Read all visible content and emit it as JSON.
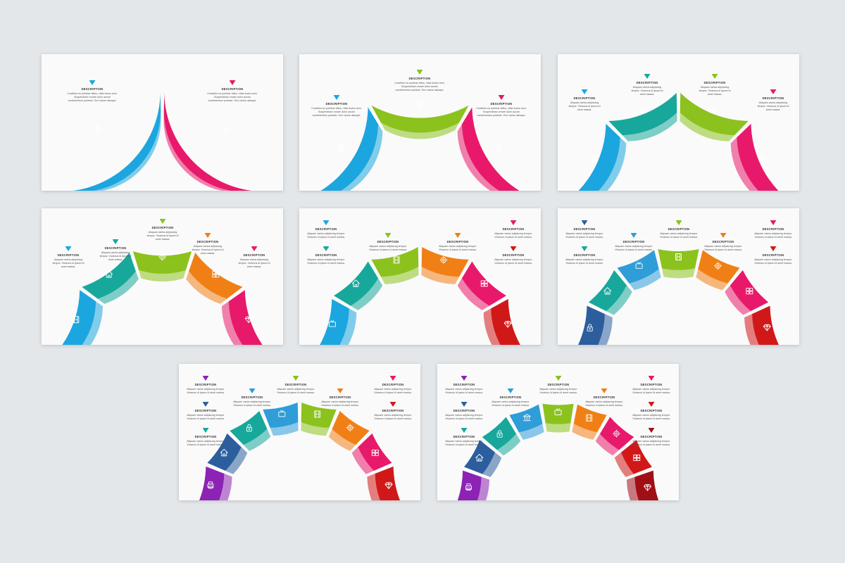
{
  "colors": {
    "blue": "#1ca6df",
    "pink": "#e8196a",
    "green": "#8cc21d",
    "teal": "#17a89b",
    "orange": "#f08015",
    "red": "#d11818",
    "navy": "#2c5e9e",
    "purple": "#8c23b4",
    "lightblue": "#2e9dd8",
    "darkred": "#a10f16"
  },
  "slides": [
    {
      "segments": [
        {
          "color": "blue",
          "icon": "printer-icon"
        },
        {
          "color": "pink",
          "icon": "lock-icon"
        }
      ],
      "items": [
        {
          "color": "blue",
          "title": "DESCRIPTION",
          "lines": [
            "Curabitur eu pulvinar tellus, vitae luctus sem.",
            "Suspendisse ornare dolor auctor",
            "condimentum pulvinar. Orci varius natoque."
          ]
        },
        {
          "color": "pink",
          "title": "DESCRIPTION",
          "lines": [
            "Curabitur eu pulvinar tellus, vitae luctus sem.",
            "Suspendisse ornare dolor auctor",
            "condimentum pulvinar. Orci varius natoque."
          ]
        }
      ]
    },
    {
      "segments": [
        {
          "color": "blue",
          "icon": "printer-icon"
        },
        {
          "color": "green",
          "icon": "home-icon"
        },
        {
          "color": "pink",
          "icon": "lock-icon"
        }
      ],
      "items": [
        {
          "color": "blue",
          "title": "DESCRIPTION",
          "lines": [
            "Curabitur eu pulvinar tellus, vitae luctus sem.",
            "Suspendisse ornare dolor auctor",
            "condimentum pulvinar. Orci varius natoque."
          ]
        },
        {
          "color": "green",
          "title": "DESCRIPTION",
          "lines": [
            "Curabitur eu pulvinar tellus, vitae luctus sem.",
            "Suspendisse ornare dolor auctor",
            "condimentum pulvinar. Orci varius natoque."
          ]
        },
        {
          "color": "pink",
          "title": "DESCRIPTION",
          "lines": [
            "Curabitur eu pulvinar tellus, vitae luctus sem.",
            "Suspendisse ornare dolor auctor",
            "condimentum pulvinar. Orci varius natoque."
          ]
        }
      ]
    },
    {
      "segments": [
        {
          "color": "blue",
          "icon": "film-icon"
        },
        {
          "color": "teal",
          "icon": "home-icon"
        },
        {
          "color": "green",
          "icon": "windows-icon"
        },
        {
          "color": "pink",
          "icon": "diamond-icon"
        }
      ],
      "items": [
        {
          "color": "blue",
          "title": "DESCRIPTION",
          "lines": [
            "Aliquam varius adipiscing",
            "tempor. Vivamus id ipsum id",
            "amet massa."
          ]
        },
        {
          "color": "teal",
          "title": "DESCRIPTION",
          "lines": [
            "Aliquam varius adipiscing",
            "tempor. Vivamus id ipsum id",
            "amet massa."
          ]
        },
        {
          "color": "green",
          "title": "DESCRIPTION",
          "lines": [
            "Aliquam varius adipiscing",
            "tempor. Vivamus id ipsum id",
            "amet massa."
          ]
        },
        {
          "color": "pink",
          "title": "DESCRIPTION",
          "lines": [
            "Aliquam varius adipiscing",
            "tempor. Vivamus id ipsum id",
            "amet massa."
          ]
        }
      ]
    },
    {
      "segments": [
        {
          "color": "blue",
          "icon": "film-icon"
        },
        {
          "color": "teal",
          "icon": "home-icon"
        },
        {
          "color": "green",
          "icon": "gear-icon"
        },
        {
          "color": "orange",
          "icon": "windows-icon"
        },
        {
          "color": "pink",
          "icon": "diamond-icon"
        }
      ],
      "items": [
        {
          "color": "blue",
          "title": "DESCRIPTION",
          "lines": [
            "Aliquam varius adipiscing",
            "tempor. Vivamus id ipsum id",
            "amet massa."
          ]
        },
        {
          "color": "teal",
          "title": "DESCRIPTION",
          "lines": [
            "Aliquam varius adipiscing",
            "tempor. Vivamus id ipsum id",
            "amet massa."
          ]
        },
        {
          "color": "green",
          "title": "DESCRIPTION",
          "lines": [
            "Aliquam varius adipiscing",
            "tempor. Vivamus id ipsum id",
            "amet massa."
          ]
        },
        {
          "color": "orange",
          "title": "DESCRIPTION",
          "lines": [
            "Aliquam varius adipiscing",
            "tempor. Vivamus id ipsum id",
            "amet massa."
          ]
        },
        {
          "color": "pink",
          "title": "DESCRIPTION",
          "lines": [
            "Aliquam varius adipiscing",
            "tempor. Vivamus id ipsum id",
            "amet massa."
          ]
        }
      ]
    },
    {
      "segments": [
        {
          "color": "blue",
          "icon": "tv-icon"
        },
        {
          "color": "teal",
          "icon": "home-icon"
        },
        {
          "color": "green",
          "icon": "film-icon"
        },
        {
          "color": "orange",
          "icon": "gear-icon"
        },
        {
          "color": "pink",
          "icon": "windows-icon"
        },
        {
          "color": "red",
          "icon": "diamond-icon"
        }
      ],
      "items": [
        {
          "color": "blue",
          "title": "DESCRIPTION",
          "lines": [
            "Aliquam varius adipiscing tempor.",
            "Vivamus id ipsum id amet massa."
          ]
        },
        {
          "color": "teal",
          "title": "DESCRIPTION",
          "lines": [
            "Aliquam varius adipiscing tempor.",
            "Vivamus id ipsum id amet massa."
          ]
        },
        {
          "color": "green",
          "title": "DESCRIPTION",
          "lines": [
            "Aliquam varius adipiscing tempor.",
            "Vivamus id ipsum id amet massa."
          ]
        },
        {
          "color": "orange",
          "title": "DESCRIPTION",
          "lines": [
            "Aliquam varius adipiscing tempor.",
            "Vivamus id ipsum id amet massa."
          ]
        },
        {
          "color": "pink",
          "title": "DESCRIPTION",
          "lines": [
            "Aliquam varius adipiscing tempor.",
            "Vivamus id ipsum id amet massa."
          ]
        },
        {
          "color": "red",
          "title": "DESCRIPTION",
          "lines": [
            "Aliquam varius adipiscing tempor.",
            "Vivamus id ipsum id amet massa."
          ]
        }
      ]
    },
    {
      "segments": [
        {
          "color": "navy",
          "icon": "lock-icon"
        },
        {
          "color": "teal",
          "icon": "home-icon"
        },
        {
          "color": "lightblue",
          "icon": "tv-icon"
        },
        {
          "color": "green",
          "icon": "film-icon"
        },
        {
          "color": "orange",
          "icon": "gear-icon"
        },
        {
          "color": "pink",
          "icon": "windows-icon"
        },
        {
          "color": "red",
          "icon": "diamond-icon"
        }
      ],
      "items": [
        {
          "color": "navy",
          "title": "DESCRIPTION",
          "lines": [
            "Aliquam varius adipiscing tempor.",
            "Vivamus id ipsum id amet massa."
          ]
        },
        {
          "color": "teal",
          "title": "DESCRIPTION",
          "lines": [
            "Aliquam varius adipiscing tempor.",
            "Vivamus id ipsum id amet massa."
          ]
        },
        {
          "color": "lightblue",
          "title": "DESCRIPTION",
          "lines": [
            "Aliquam varius adipiscing tempor.",
            "Vivamus id ipsum id amet massa."
          ]
        },
        {
          "color": "green",
          "title": "DESCRIPTION",
          "lines": [
            "Aliquam varius adipiscing tempor.",
            "Vivamus id ipsum id amet massa."
          ]
        },
        {
          "color": "orange",
          "title": "DESCRIPTION",
          "lines": [
            "Aliquam varius adipiscing tempor.",
            "Vivamus id ipsum id amet massa."
          ]
        },
        {
          "color": "pink",
          "title": "DESCRIPTION",
          "lines": [
            "Aliquam varius adipiscing tempor.",
            "Vivamus id ipsum id amet massa."
          ]
        },
        {
          "color": "red",
          "title": "DESCRIPTION",
          "lines": [
            "Aliquam varius adipiscing tempor.",
            "Vivamus id ipsum id amet massa."
          ]
        }
      ]
    },
    {
      "segments": [
        {
          "color": "purple",
          "icon": "printer-icon"
        },
        {
          "color": "navy",
          "icon": "home-icon"
        },
        {
          "color": "teal",
          "icon": "lock-icon"
        },
        {
          "color": "lightblue",
          "icon": "tv-icon"
        },
        {
          "color": "green",
          "icon": "film-icon"
        },
        {
          "color": "orange",
          "icon": "gear-icon"
        },
        {
          "color": "pink",
          "icon": "windows-icon"
        },
        {
          "color": "red",
          "icon": "diamond-icon"
        }
      ],
      "items": [
        {
          "color": "purple",
          "title": "DESCRIPTION",
          "lines": [
            "Aliquam varius adipiscing tempor.",
            "Vivamus id ipsum id amet massa."
          ]
        },
        {
          "color": "navy",
          "title": "DESCRIPTION",
          "lines": [
            "Aliquam varius adipiscing tempor.",
            "Vivamus id ipsum id amet massa."
          ]
        },
        {
          "color": "teal",
          "title": "DESCRIPTION",
          "lines": [
            "Aliquam varius adipiscing tempor.",
            "Vivamus id ipsum id amet massa."
          ]
        },
        {
          "color": "lightblue",
          "title": "DESCRIPTION",
          "lines": [
            "Aliquam varius adipiscing tempor.",
            "Vivamus id ipsum id amet massa."
          ]
        },
        {
          "color": "green",
          "title": "DESCRIPTION",
          "lines": [
            "Aliquam varius adipiscing tempor.",
            "Vivamus id ipsum id amet massa."
          ]
        },
        {
          "color": "orange",
          "title": "DESCRIPTION",
          "lines": [
            "Aliquam varius adipiscing tempor.",
            "Vivamus id ipsum id amet massa."
          ]
        },
        {
          "color": "pink",
          "title": "DESCRIPTION",
          "lines": [
            "Aliquam varius adipiscing tempor.",
            "Vivamus id ipsum id amet massa."
          ]
        },
        {
          "color": "red",
          "title": "DESCRIPTION",
          "lines": [
            "Aliquam varius adipiscing tempor.",
            "Vivamus id ipsum id amet massa."
          ]
        }
      ]
    },
    {
      "segments": [
        {
          "color": "purple",
          "icon": "printer-icon"
        },
        {
          "color": "navy",
          "icon": "home-icon"
        },
        {
          "color": "teal",
          "icon": "lock-icon"
        },
        {
          "color": "lightblue",
          "icon": "bank-icon"
        },
        {
          "color": "green",
          "icon": "tv-icon"
        },
        {
          "color": "orange",
          "icon": "film-icon"
        },
        {
          "color": "pink",
          "icon": "gear-icon"
        },
        {
          "color": "red",
          "icon": "windows-icon"
        },
        {
          "color": "darkred",
          "icon": "diamond-icon"
        }
      ],
      "items": [
        {
          "color": "purple",
          "title": "DESCRIPTION",
          "lines": [
            "Aliquam varius adipiscing tempor.",
            "Vivamus id ipsum id amet massa."
          ]
        },
        {
          "color": "navy",
          "title": "DESCRIPTION",
          "lines": [
            "Aliquam varius adipiscing tempor.",
            "Vivamus id ipsum id amet massa."
          ]
        },
        {
          "color": "teal",
          "title": "DESCRIPTION",
          "lines": [
            "Aliquam varius adipiscing tempor.",
            "Vivamus id ipsum id amet massa."
          ]
        },
        {
          "color": "lightblue",
          "title": "DESCRIPTION",
          "lines": [
            "Aliquam varius adipiscing tempor.",
            "Vivamus id ipsum id amet massa."
          ]
        },
        {
          "color": "green",
          "title": "DESCRIPTION",
          "lines": [
            "Aliquam varius adipiscing tempor.",
            "Vivamus id ipsum id amet massa."
          ]
        },
        {
          "color": "orange",
          "title": "DESCRIPTION",
          "lines": [
            "Aliquam varius adipiscing tempor.",
            "Vivamus id ipsum id amet massa."
          ]
        },
        {
          "color": "pink",
          "title": "DESCRIPTION",
          "lines": [
            "Aliquam varius adipiscing tempor.",
            "Vivamus id ipsum id amet massa."
          ]
        },
        {
          "color": "red",
          "title": "DESCRIPTION",
          "lines": [
            "Aliquam varius adipiscing tempor.",
            "Vivamus id ipsum id amet massa."
          ]
        },
        {
          "color": "darkred",
          "title": "DESCRIPTION",
          "lines": [
            "Aliquam varius adipiscing tempor.",
            "Vivamus id ipsum id amet massa."
          ]
        }
      ]
    }
  ]
}
